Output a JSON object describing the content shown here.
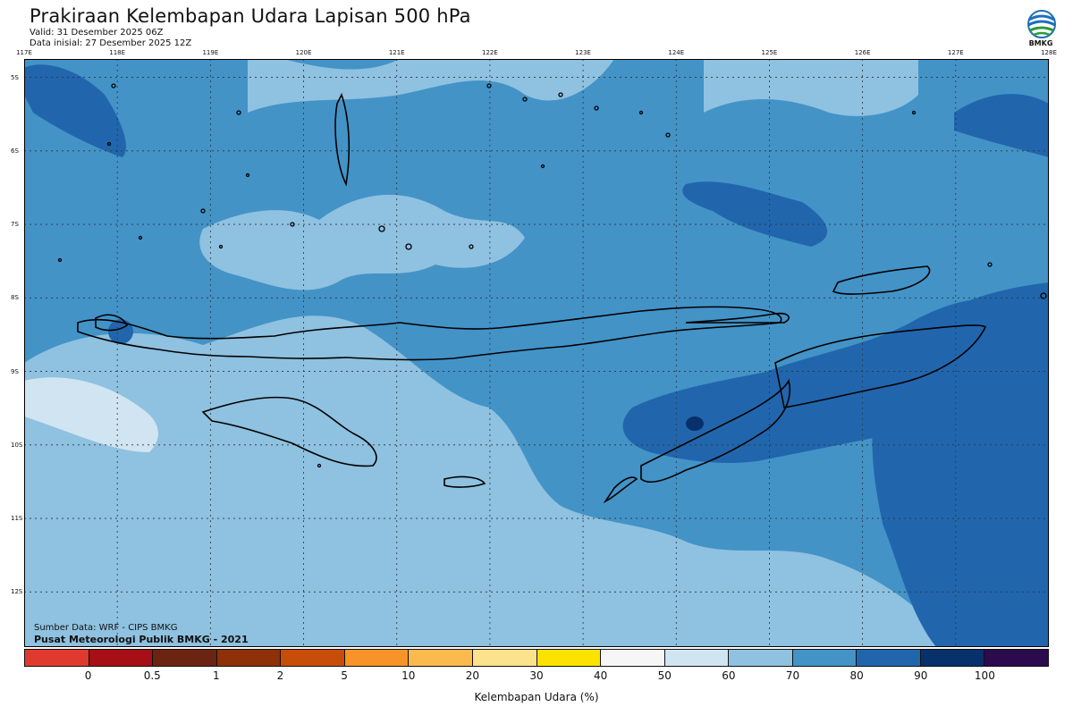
{
  "header": {
    "title": "Prakiraan Kelembapan Udara Lapisan 500 hPa",
    "valid": "Valid: 31 Desember 2025 06Z",
    "initial": "Data inisial: 27 Desember 2025 12Z",
    "logo_text": "BMKG"
  },
  "map": {
    "lon_labels": [
      "117E",
      "118E",
      "119E",
      "120E",
      "121E",
      "122E",
      "123E",
      "124E",
      "125E",
      "126E",
      "127E",
      "128E"
    ],
    "lat_labels": [
      "5S",
      "6S",
      "7S",
      "8S",
      "9S",
      "10S",
      "11S",
      "12S"
    ],
    "lon_range": [
      117,
      128
    ],
    "lat_range": [
      -4.75,
      -12.75
    ],
    "source": "Sumber Data: WRF - CIPS BMKG",
    "credit": "Pusat Meteorologi Publik BMKG - 2021"
  },
  "legend": {
    "title": "Kelembapan Udara (%)",
    "ticks": [
      "0",
      "0.5",
      "1",
      "2",
      "5",
      "10",
      "20",
      "30",
      "40",
      "50",
      "60",
      "70",
      "80",
      "90",
      "100"
    ],
    "colors": [
      "#e03a2e",
      "#a50f15",
      "#6b2411",
      "#8e3008",
      "#c84d08",
      "#f79328",
      "#fbb94e",
      "#fde28e",
      "#fce200",
      "#f6f6f6",
      "#d1e4f1",
      "#8fc1e0",
      "#4393c7",
      "#2166ad",
      "#08306b",
      "#2b0a4e"
    ]
  },
  "field_colors": {
    "c60": "#d1e4f1",
    "c70": "#8fc1e0",
    "c80": "#4393c7",
    "c90": "#2166ad",
    "c100": "#08306b"
  }
}
